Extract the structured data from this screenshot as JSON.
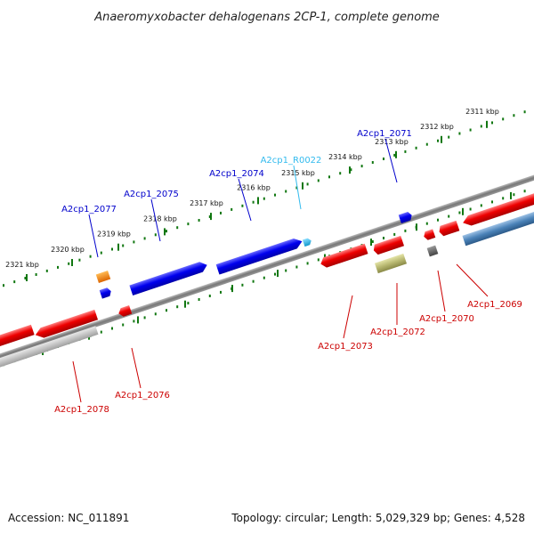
{
  "title": "Anaeromyxobacter dehalogenans 2CP-1, complete genome",
  "footer": {
    "accession": "Accession: NC_011891",
    "summary": "Topology: circular; Length: 5,029,329 bp; Genes: 4,528"
  },
  "colors": {
    "forward_label": "#0000cc",
    "reverse_label": "#cc0000",
    "rna_label": "#33bbee",
    "forward_gene": "#0000ee",
    "reverse_gene": "#ee0000",
    "backbone": "#888888",
    "scale_ticks": "#117711"
  },
  "scale": {
    "unit": "kbp",
    "tick_labels": [
      "2311 kbp",
      "2312 kbp",
      "2313 kbp",
      "2314 kbp",
      "2315 kbp",
      "2316 kbp",
      "2317 kbp",
      "2318 kbp",
      "2319 kbp",
      "2320 kbp",
      "2321 kbp"
    ]
  },
  "genes": [
    {
      "id": "A2cp1_2077",
      "strand": "forward"
    },
    {
      "id": "A2cp1_2075",
      "strand": "forward"
    },
    {
      "id": "A2cp1_2074",
      "strand": "forward"
    },
    {
      "id": "A2cp1_R0022",
      "strand": "forward",
      "kind": "rna"
    },
    {
      "id": "A2cp1_2071",
      "strand": "forward"
    },
    {
      "id": "A2cp1_2078",
      "strand": "reverse"
    },
    {
      "id": "A2cp1_2076",
      "strand": "reverse"
    },
    {
      "id": "A2cp1_2073",
      "strand": "reverse"
    },
    {
      "id": "A2cp1_2072",
      "strand": "reverse"
    },
    {
      "id": "A2cp1_2070",
      "strand": "reverse"
    },
    {
      "id": "A2cp1_2069",
      "strand": "reverse"
    }
  ]
}
